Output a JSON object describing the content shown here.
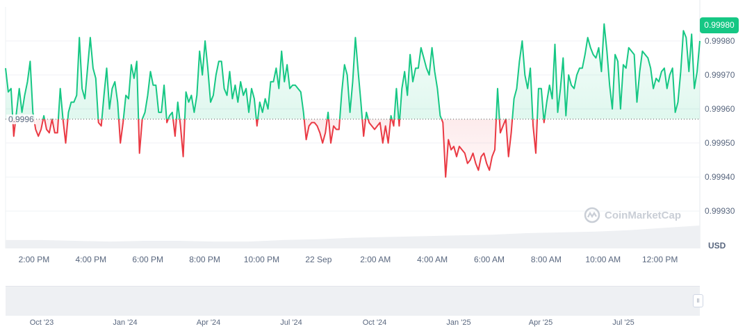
{
  "chart_data": {
    "type": "line",
    "title": "",
    "xlabel": "",
    "ylabel": "USD",
    "currency_label": "USD",
    "ylim": [
      0.99919,
      0.9999
    ],
    "baseline": 0.99957,
    "baseline_label": "0.9996",
    "current_price_label": "0.99980",
    "y_ticks": [
      "0.99980",
      "0.99970",
      "0.99960",
      "0.99950",
      "0.99940",
      "0.99930"
    ],
    "y_tick_values": [
      0.9998,
      0.9997,
      0.9996,
      0.9995,
      0.9994,
      0.9993
    ],
    "x_ticks": [
      "2:00 PM",
      "4:00 PM",
      "6:00 PM",
      "8:00 PM",
      "10:00 PM",
      "22 Sep",
      "2:00 AM",
      "4:00 AM",
      "6:00 AM",
      "8:00 AM",
      "10:00 AM",
      "12:00 PM"
    ],
    "x_range_hours": [
      13.0,
      37.4
    ],
    "x_tick_hours": [
      14,
      16,
      18,
      20,
      22,
      24,
      26,
      28,
      30,
      32,
      34,
      36
    ],
    "values_e5_offset": 0.99,
    "values_e5": [
      972,
      965,
      966,
      952,
      959,
      966,
      959,
      964,
      968,
      974,
      959,
      954,
      952,
      954,
      958,
      954,
      953,
      957,
      953,
      953,
      966,
      957,
      950,
      959,
      962,
      962,
      964,
      981,
      966,
      963,
      972,
      981,
      972,
      969,
      956,
      955,
      964,
      972,
      960,
      966,
      968,
      962,
      950,
      956,
      964,
      963,
      973,
      969,
      974,
      947,
      957,
      959,
      964,
      971,
      967,
      967,
      959,
      959,
      967,
      956,
      958,
      959,
      952,
      962,
      955,
      946,
      965,
      962,
      964,
      959,
      964,
      977,
      970,
      980,
      972,
      962,
      964,
      970,
      974,
      974,
      966,
      964,
      971,
      963,
      967,
      962,
      968,
      964,
      966,
      959,
      966,
      963,
      955,
      962,
      959,
      963,
      960,
      968,
      968,
      972,
      966,
      977,
      968,
      973,
      966,
      967,
      967,
      966,
      965,
      959,
      951,
      955,
      956,
      956,
      955,
      953,
      950,
      953,
      959,
      950,
      955,
      954,
      954,
      965,
      973,
      970,
      959,
      968,
      981,
      971,
      962,
      952,
      959,
      956,
      955,
      954,
      955,
      956,
      950,
      955,
      950,
      958,
      955,
      966,
      955,
      966,
      971,
      964,
      976,
      968,
      972,
      972,
      978,
      975,
      972,
      970,
      978,
      971,
      966,
      958,
      956,
      940,
      951,
      948,
      949,
      946,
      949,
      948,
      947,
      944,
      945,
      947,
      944,
      942,
      946,
      947,
      944,
      942,
      946,
      948,
      966,
      953,
      955,
      957,
      946,
      953,
      963,
      966,
      974,
      980,
      970,
      966,
      972,
      955,
      947,
      966,
      966,
      956,
      962,
      967,
      963,
      979,
      959,
      966,
      975,
      958,
      970,
      967,
      966,
      970,
      972,
      972,
      976,
      981,
      978,
      976,
      975,
      978,
      971,
      985,
      977,
      967,
      960,
      976,
      974,
      960,
      973,
      972,
      978,
      977,
      976,
      962,
      971,
      977,
      976,
      975,
      972,
      966,
      969,
      968,
      971,
      972,
      966,
      970,
      972,
      959,
      962,
      971,
      983,
      981,
      971,
      982,
      966,
      971,
      980
    ],
    "volume_relative": [
      0.55,
      0.55,
      0.5,
      0.45,
      0.5,
      0.5,
      0.45,
      0.45,
      0.55,
      0.6,
      0.7,
      0.75,
      0.8,
      0.85,
      0.9,
      1.0,
      1.05,
      1.1,
      1.2,
      1.35,
      1.5
    ],
    "watermark": "CoinMarketCap",
    "navigator_ticks": [
      "Oct '23",
      "Jan '24",
      "Apr '24",
      "Jul '24",
      "Oct '24",
      "Jan '25",
      "Apr '25",
      "Jul '25"
    ],
    "navigator_handle": "II",
    "colors": {
      "up": "#16c784",
      "down": "#ea3943",
      "grid": "#eff2f5"
    }
  }
}
